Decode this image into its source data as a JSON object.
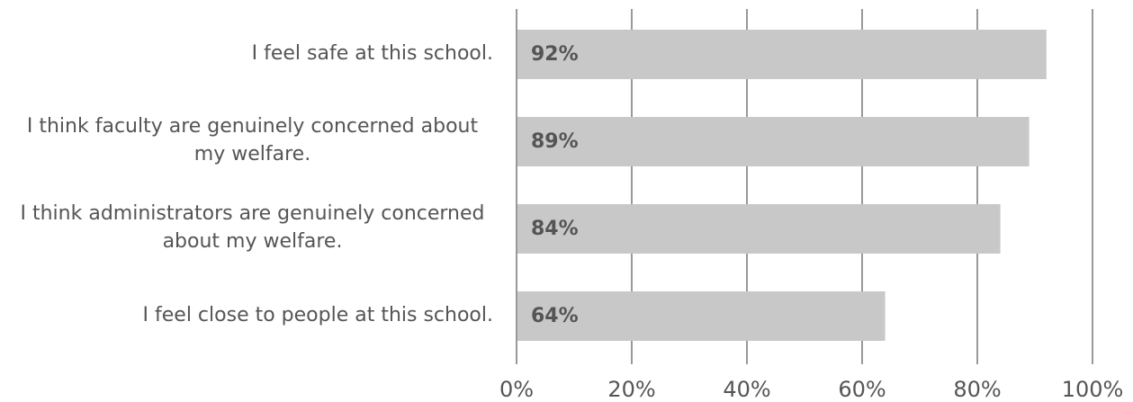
{
  "chart_data": {
    "type": "hbar",
    "categories": [
      "I feel safe at this school.",
      "I think faculty are genuinely concerned about my welfare.",
      "I think administrators are genuinely concerned about my welfare.",
      "I feel close to people at this school."
    ],
    "values": [
      92,
      89,
      84,
      64
    ],
    "value_labels": [
      "92%",
      "89%",
      "84%",
      "64%"
    ],
    "color": "#c8c8c8",
    "xlim": [
      0,
      100
    ],
    "xticks": [
      {
        "value": 0,
        "label": "0%"
      },
      {
        "value": 20,
        "label": "20%"
      },
      {
        "value": 40,
        "label": "40%"
      },
      {
        "value": 60,
        "label": "60%"
      },
      {
        "value": 80,
        "label": "80%"
      },
      {
        "value": 100,
        "label": "100%"
      }
    ],
    "grid": true
  }
}
